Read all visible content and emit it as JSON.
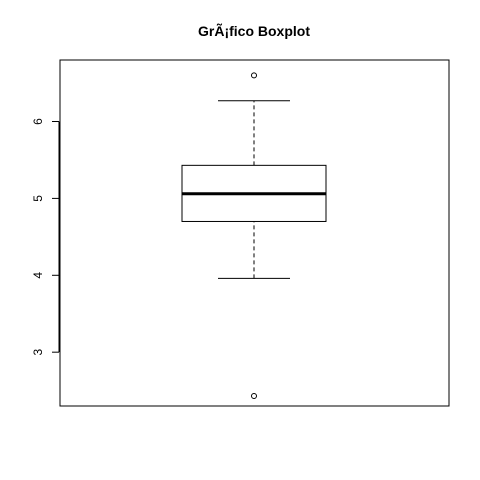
{
  "chart_data": {
    "type": "boxplot",
    "title": "GrÃ¡fico Boxplot",
    "xlabel": "",
    "ylabel": "",
    "ylim": [
      2.3,
      6.8
    ],
    "y_ticks": [
      3,
      4,
      5,
      6
    ],
    "y_tick_labels": [
      "3",
      "4",
      "5",
      "6"
    ],
    "box": {
      "lower_whisker": 3.96,
      "q1": 4.7,
      "median": 5.06,
      "q3": 5.43,
      "upper_whisker": 6.27
    },
    "outliers": [
      6.6,
      2.43
    ],
    "grid": false,
    "legend": false
  }
}
